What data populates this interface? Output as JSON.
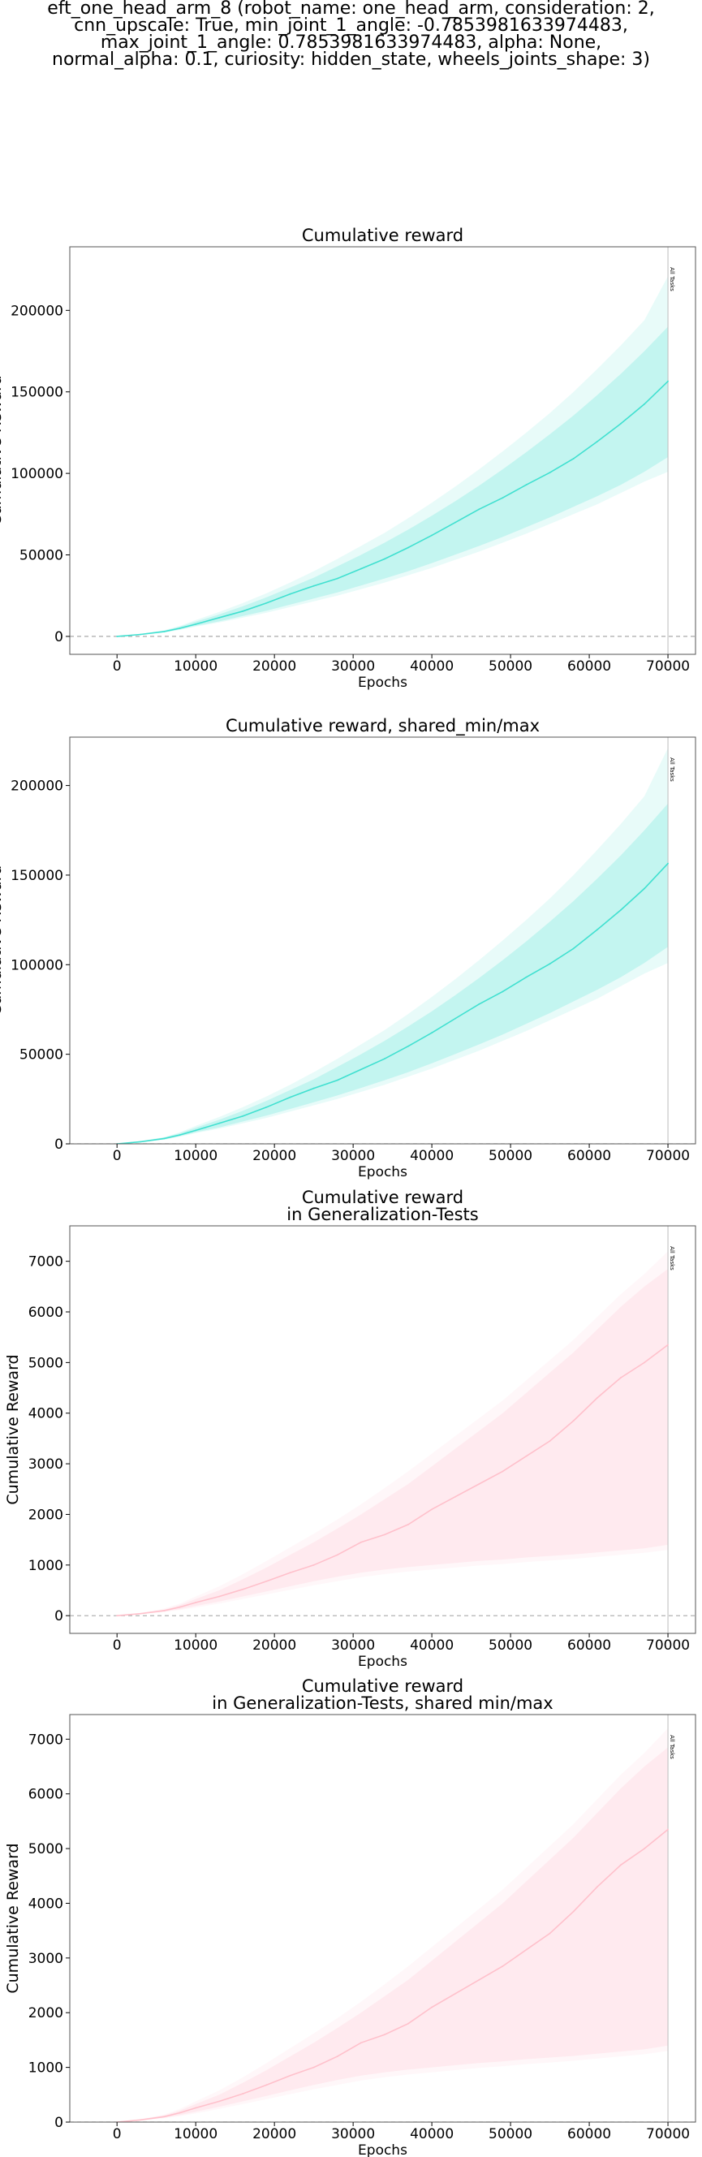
{
  "suptitle": {
    "lines": [
      "eft_one_head_arm_8 (robot_name: one_head_arm, consideration: 2,",
      "cnn_upscale: True, min_joint_1_angle: -0.7853981633974483,",
      "max_joint_1_angle: 0.7853981633974483, alpha: None,",
      "normal_alpha: 0.1, curiosity: hidden_state, wheels_joints_shape: 3)"
    ]
  },
  "chart_data": [
    {
      "type": "line",
      "title": [
        "Cumulative reward"
      ],
      "xlabel": "Epochs",
      "ylabel": "Cumulative Reward",
      "xlim": [
        -6000,
        73500
      ],
      "ylim": [
        -11000,
        239000
      ],
      "xticks": [
        0,
        10000,
        20000,
        30000,
        40000,
        50000,
        60000,
        70000
      ],
      "yticks": [
        0,
        50000,
        100000,
        150000,
        200000
      ],
      "hline": 0,
      "vline": {
        "x": 70000,
        "label": "All Tasks"
      },
      "color": "#40E0D0",
      "series": [
        {
          "x": [
            0,
            3000,
            6000,
            8000,
            10000,
            13000,
            16000,
            19000,
            22000,
            25000,
            28000,
            31000,
            34000,
            37000,
            40000,
            43000,
            46000,
            49000,
            52000,
            55000,
            58000,
            61000,
            64000,
            67000,
            70000
          ],
          "y": [
            0,
            1200,
            3000,
            5000,
            7500,
            11500,
            15500,
            20500,
            26000,
            31000,
            35500,
            41500,
            47500,
            54500,
            62000,
            70000,
            78000,
            85000,
            93000,
            100500,
            109000,
            119500,
            130500,
            142500,
            156500
          ],
          "lower": [
            0,
            900,
            2300,
            4000,
            6000,
            8500,
            11500,
            14500,
            18000,
            21500,
            25000,
            29000,
            33000,
            37500,
            42000,
            47000,
            52000,
            57500,
            63000,
            69000,
            75000,
            81000,
            88000,
            95000,
            101000
          ],
          "lower_inner": [
            0,
            1000,
            2500,
            4300,
            6500,
            9200,
            12500,
            15800,
            19500,
            23200,
            27000,
            31200,
            35500,
            40000,
            45000,
            50200,
            55500,
            61000,
            67000,
            73000,
            79500,
            86000,
            93000,
            101000,
            110000
          ],
          "upper_inner": [
            0,
            1500,
            3500,
            6000,
            9000,
            13500,
            18500,
            24000,
            30000,
            36000,
            43000,
            50000,
            57500,
            65500,
            74000,
            83000,
            92500,
            102500,
            113000,
            124000,
            135500,
            148000,
            161000,
            175000,
            190000
          ],
          "upper": [
            0,
            1600,
            3800,
            6500,
            10000,
            15000,
            20500,
            26500,
            33000,
            40000,
            47500,
            55500,
            63500,
            72500,
            82000,
            92000,
            102500,
            113500,
            125000,
            137000,
            150000,
            164000,
            178500,
            194000,
            221000
          ]
        }
      ]
    },
    {
      "type": "line",
      "title": [
        "Cumulative reward, shared_min/max"
      ],
      "xlabel": "Epochs",
      "ylabel": "Cumulative Reward",
      "xlim": [
        -6000,
        73500
      ],
      "ylim": [
        0,
        227000
      ],
      "xticks": [
        0,
        10000,
        20000,
        30000,
        40000,
        50000,
        60000,
        70000
      ],
      "yticks": [
        0,
        50000,
        100000,
        150000,
        200000
      ],
      "hline": 0,
      "vline": {
        "x": 70000,
        "label": "All Tasks"
      },
      "color": "#40E0D0",
      "series": [
        {
          "x": [
            0,
            3000,
            6000,
            8000,
            10000,
            13000,
            16000,
            19000,
            22000,
            25000,
            28000,
            31000,
            34000,
            37000,
            40000,
            43000,
            46000,
            49000,
            52000,
            55000,
            58000,
            61000,
            64000,
            67000,
            70000
          ],
          "y": [
            0,
            1200,
            3000,
            5000,
            7500,
            11500,
            15500,
            20500,
            26000,
            31000,
            35500,
            41500,
            47500,
            54500,
            62000,
            70000,
            78000,
            85000,
            93000,
            100500,
            109000,
            119500,
            130500,
            142500,
            156500
          ],
          "lower": [
            0,
            900,
            2300,
            4000,
            6000,
            8500,
            11500,
            14500,
            18000,
            21500,
            25000,
            29000,
            33000,
            37500,
            42000,
            47000,
            52000,
            57500,
            63000,
            69000,
            75000,
            81000,
            88000,
            95000,
            101000
          ],
          "lower_inner": [
            0,
            1000,
            2500,
            4300,
            6500,
            9200,
            12500,
            15800,
            19500,
            23200,
            27000,
            31200,
            35500,
            40000,
            45000,
            50200,
            55500,
            61000,
            67000,
            73000,
            79500,
            86000,
            93000,
            101000,
            110000
          ],
          "upper_inner": [
            0,
            1500,
            3500,
            6000,
            9000,
            13500,
            18500,
            24000,
            30000,
            36000,
            43000,
            50000,
            57500,
            65500,
            74000,
            83000,
            92500,
            102500,
            113000,
            124000,
            135500,
            148000,
            161000,
            175000,
            190000
          ],
          "upper": [
            0,
            1600,
            3800,
            6500,
            10000,
            15000,
            20500,
            26500,
            33000,
            40000,
            47500,
            55500,
            63500,
            72500,
            82000,
            92000,
            102500,
            113500,
            125000,
            137000,
            150000,
            164000,
            178500,
            194000,
            221000
          ]
        }
      ]
    },
    {
      "type": "line",
      "title": [
        "Cumulative reward",
        "in Generalization-Tests"
      ],
      "xlabel": "Epochs",
      "ylabel": "Cumulative Reward",
      "xlim": [
        -6000,
        73500
      ],
      "ylim": [
        -350,
        7700
      ],
      "xticks": [
        0,
        10000,
        20000,
        30000,
        40000,
        50000,
        60000,
        70000
      ],
      "yticks": [
        0,
        1000,
        2000,
        3000,
        4000,
        5000,
        6000,
        7000
      ],
      "hline": 0,
      "vline": {
        "x": 70000,
        "label": "All Tasks"
      },
      "color": "#FFC0CB",
      "series": [
        {
          "x": [
            0,
            3000,
            6000,
            8000,
            10000,
            13000,
            16000,
            19000,
            22000,
            25000,
            28000,
            31000,
            34000,
            37000,
            40000,
            43000,
            46000,
            49000,
            52000,
            55000,
            58000,
            61000,
            64000,
            67000,
            70000
          ],
          "y": [
            0,
            40,
            100,
            170,
            260,
            380,
            520,
            680,
            850,
            1000,
            1200,
            1450,
            1600,
            1800,
            2100,
            2350,
            2600,
            2850,
            3150,
            3450,
            3850,
            4300,
            4700,
            5000,
            5350
          ],
          "lower": [
            0,
            30,
            70,
            110,
            160,
            240,
            330,
            420,
            510,
            600,
            680,
            760,
            820,
            870,
            910,
            950,
            990,
            1020,
            1060,
            1090,
            1120,
            1160,
            1200,
            1240,
            1300
          ],
          "lower_inner": [
            0,
            35,
            80,
            130,
            190,
            280,
            380,
            480,
            580,
            680,
            770,
            850,
            910,
            960,
            1000,
            1040,
            1080,
            1110,
            1150,
            1180,
            1210,
            1250,
            1290,
            1330,
            1400
          ],
          "upper_inner": [
            0,
            50,
            120,
            210,
            330,
            500,
            720,
            950,
            1200,
            1450,
            1720,
            2000,
            2300,
            2600,
            2950,
            3300,
            3650,
            4000,
            4400,
            4800,
            5200,
            5650,
            6100,
            6500,
            6850
          ],
          "upper": [
            0,
            55,
            140,
            240,
            380,
            580,
            820,
            1080,
            1350,
            1620,
            1900,
            2200,
            2520,
            2850,
            3200,
            3550,
            3900,
            4250,
            4650,
            5050,
            5450,
            5900,
            6350,
            6750,
            7200
          ]
        }
      ]
    },
    {
      "type": "line",
      "title": [
        "Cumulative reward",
        "in Generalization-Tests, shared min/max"
      ],
      "xlabel": "Epochs",
      "ylabel": "Cumulative Reward",
      "xlim": [
        -6000,
        73500
      ],
      "ylim": [
        0,
        7450
      ],
      "xticks": [
        0,
        10000,
        20000,
        30000,
        40000,
        50000,
        60000,
        70000
      ],
      "yticks": [
        0,
        1000,
        2000,
        3000,
        4000,
        5000,
        6000,
        7000
      ],
      "hline": 0,
      "vline": {
        "x": 70000,
        "label": "All Tasks"
      },
      "color": "#FFC0CB",
      "series": [
        {
          "x": [
            0,
            3000,
            6000,
            8000,
            10000,
            13000,
            16000,
            19000,
            22000,
            25000,
            28000,
            31000,
            34000,
            37000,
            40000,
            43000,
            46000,
            49000,
            52000,
            55000,
            58000,
            61000,
            64000,
            67000,
            70000
          ],
          "y": [
            0,
            40,
            100,
            170,
            260,
            380,
            520,
            680,
            850,
            1000,
            1200,
            1450,
            1600,
            1800,
            2100,
            2350,
            2600,
            2850,
            3150,
            3450,
            3850,
            4300,
            4700,
            5000,
            5350
          ],
          "lower": [
            0,
            30,
            70,
            110,
            160,
            240,
            330,
            420,
            510,
            600,
            680,
            760,
            820,
            870,
            910,
            950,
            990,
            1020,
            1060,
            1090,
            1120,
            1160,
            1200,
            1240,
            1300
          ],
          "lower_inner": [
            0,
            35,
            80,
            130,
            190,
            280,
            380,
            480,
            580,
            680,
            770,
            850,
            910,
            960,
            1000,
            1040,
            1080,
            1110,
            1150,
            1180,
            1210,
            1250,
            1290,
            1330,
            1400
          ],
          "upper_inner": [
            0,
            50,
            120,
            210,
            330,
            500,
            720,
            950,
            1200,
            1450,
            1720,
            2000,
            2300,
            2600,
            2950,
            3300,
            3650,
            4000,
            4400,
            4800,
            5200,
            5650,
            6100,
            6500,
            6850
          ],
          "upper": [
            0,
            55,
            140,
            240,
            380,
            580,
            820,
            1080,
            1350,
            1620,
            1900,
            2200,
            2520,
            2850,
            3200,
            3550,
            3900,
            4250,
            4650,
            5050,
            5450,
            5900,
            6350,
            6750,
            7200
          ]
        }
      ]
    }
  ]
}
